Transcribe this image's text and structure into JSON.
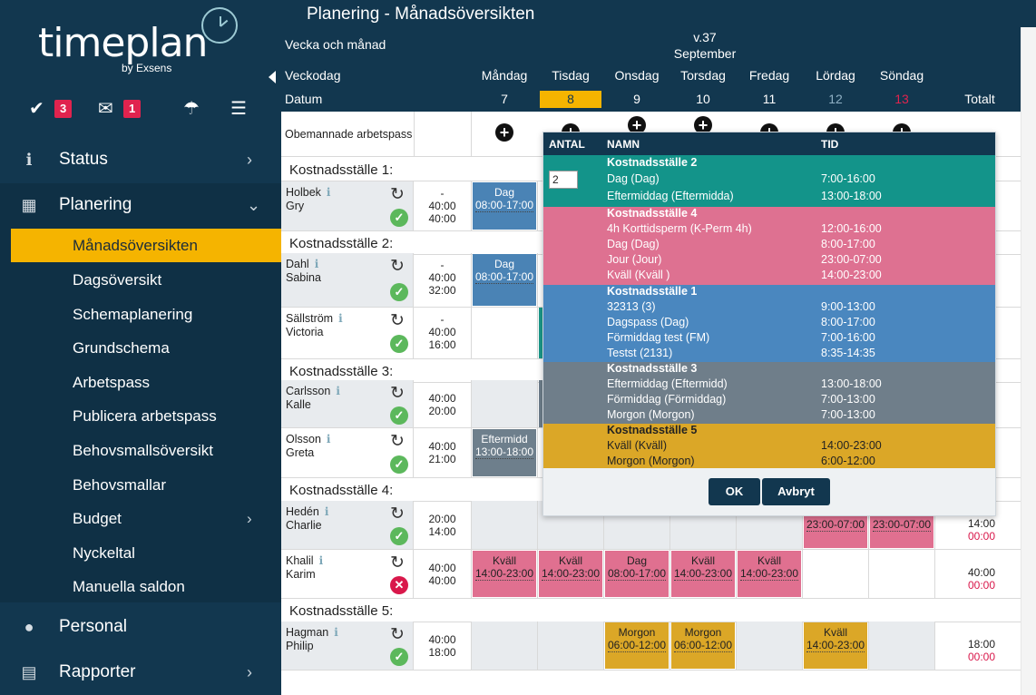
{
  "app": {
    "logo_text": "timeplan",
    "logo_by": "by Exsens"
  },
  "topicons": {
    "tasks_count": "3",
    "messages_count": "1"
  },
  "sidebar": {
    "status": "Status",
    "planering": "Planering",
    "sub": [
      "Månadsöversikten",
      "Dagsöversikt",
      "Schemaplanering",
      "Grundschema",
      "Arbetspass",
      "Publicera arbetspass",
      "Behovsmallsöversikt",
      "Behovsmallar",
      "Budget",
      "Nyckeltal",
      "Manuella saldon"
    ],
    "personal": "Personal",
    "rapporter": "Rapporter"
  },
  "page": {
    "title": "Planering - Månadsöversikten"
  },
  "header": {
    "vecka_label": "Vecka och månad",
    "week": "v.37",
    "month": "September",
    "veckodag_label": "Veckodag",
    "datum_label": "Datum",
    "total_label": "Totalt",
    "days": [
      {
        "name": "Måndag",
        "date": "7"
      },
      {
        "name": "Tisdag",
        "date": "8"
      },
      {
        "name": "Onsdag",
        "date": "9"
      },
      {
        "name": "Torsdag",
        "date": "10"
      },
      {
        "name": "Fredag",
        "date": "11"
      },
      {
        "name": "Lördag",
        "date": "12"
      },
      {
        "name": "Söndag",
        "date": "13"
      }
    ],
    "colors": {
      "today": "#f5b400",
      "saturday": "#8fb0c4",
      "sunday": "#e0234e"
    }
  },
  "unstaffed": {
    "label": "Obemannade arbetspass"
  },
  "groups": [
    "Kostnadsställe 1:",
    "Kostnadsställe 2:",
    "Kostnadsställe 3:",
    "Kostnadsställe 4:",
    "Kostnadsställe 5:"
  ],
  "employees": [
    {
      "last": "Holbek",
      "first": "Gry",
      "h1": "-",
      "h2": "40:00",
      "h3": "40:00"
    },
    {
      "last": "Dahl",
      "first": "Sabina",
      "h1": "-",
      "h2": "40:00",
      "h3": "32:00"
    },
    {
      "last": "Sällström",
      "first": "Victoria",
      "h1": "-",
      "h2": "40:00",
      "h3": "16:00"
    },
    {
      "last": "Carlsson",
      "first": "Kalle",
      "h1": "40:00",
      "h2": "20:00"
    },
    {
      "last": "Olsson",
      "first": "Greta",
      "h1": "40:00",
      "h2": "21:00"
    },
    {
      "last": "Hedén",
      "first": "Charlie",
      "h1": "20:00",
      "h2": "14:00",
      "total": "14:00",
      "total_neg": "00:00"
    },
    {
      "last": "Khalil",
      "first": "Karim",
      "h1": "40:00",
      "h2": "40:00",
      "total": "40:00",
      "total_neg": "00:00"
    },
    {
      "last": "Hagman",
      "first": "Philip",
      "h1": "40:00",
      "h2": "18:00",
      "total": "18:00",
      "total_neg": "00:00"
    }
  ],
  "shifts": {
    "holbek_mon": {
      "name": "Dag",
      "time": "08:00-17:00"
    },
    "dahl_mon": {
      "name": "Dag",
      "time": "08:00-17:00"
    },
    "olsson_mon": {
      "name": "Eftermidd",
      "time": "13:00-18:00"
    },
    "heden_sat": {
      "time": "23:00-07:00"
    },
    "heden_sun": {
      "time": "23:00-07:00"
    },
    "khalil": [
      {
        "name": "Kväll",
        "time": "14:00-23:00"
      },
      {
        "name": "Kväll",
        "time": "14:00-23:00"
      },
      {
        "name": "Dag",
        "time": "08:00-17:00"
      },
      {
        "name": "Kväll",
        "time": "14:00-23:00"
      },
      {
        "name": "Kväll",
        "time": "14:00-23:00"
      }
    ],
    "hagman_wed": {
      "name": "Morgon",
      "time": "06:00-12:00"
    },
    "hagman_thu": {
      "name": "Morgon",
      "time": "06:00-12:00"
    },
    "hagman_sat": {
      "name": "Kväll",
      "time": "14:00-23:00"
    }
  },
  "shift_colors": {
    "blue": "#4a83b5",
    "pink": "#e07090",
    "grey": "#6e7f8c",
    "gold": "#dba727",
    "teal": "#1a9a8a"
  },
  "popup": {
    "col_antal": "ANTAL",
    "col_namn": "NAMN",
    "col_tid": "TID",
    "qty_value": "2",
    "sections": [
      {
        "title": "Kostnadsställe 2",
        "color": "#13948a",
        "items": [
          {
            "name": "Dag (Dag)",
            "time": "7:00-16:00"
          },
          {
            "name": "Eftermiddag (Eftermidda)",
            "time": "13:00-18:00"
          }
        ]
      },
      {
        "title": "Kostnadsställe 4",
        "color": "#de7191",
        "items": [
          {
            "name": "4h Korttidsperm (K-Perm 4h)",
            "time": "12:00-16:00"
          },
          {
            "name": "Dag (Dag)",
            "time": "8:00-17:00"
          },
          {
            "name": "Jour (Jour)",
            "time": "23:00-07:00"
          },
          {
            "name": "Kväll (Kväll )",
            "time": "14:00-23:00"
          }
        ]
      },
      {
        "title": "Kostnadsställe 1",
        "color": "#4a87bf",
        "items": [
          {
            "name": "32313 (3)",
            "time": "9:00-13:00"
          },
          {
            "name": "Dagspass (Dag)",
            "time": "8:00-17:00"
          },
          {
            "name": "Förmiddag test (FM)",
            "time": "7:00-16:00"
          },
          {
            "name": "Testst (2131)",
            "time": "8:35-14:35"
          }
        ]
      },
      {
        "title": "Kostnadsställe 3",
        "color": "#6f7e8a",
        "items": [
          {
            "name": "Eftermiddag (Eftermidd)",
            "time": "13:00-18:00"
          },
          {
            "name": "Förmiddag (Förmiddag)",
            "time": "7:00-13:00"
          },
          {
            "name": "Morgon (Morgon)",
            "time": "7:00-13:00"
          }
        ]
      },
      {
        "title": "Kostnadsställe 5",
        "color": "#dba727",
        "items": [
          {
            "name": "Kväll (Kväll)",
            "time": "14:00-23:00"
          },
          {
            "name": "Morgon (Morgon)",
            "time": "6:00-12:00"
          }
        ]
      }
    ],
    "ok": "OK",
    "cancel": "Avbryt"
  }
}
